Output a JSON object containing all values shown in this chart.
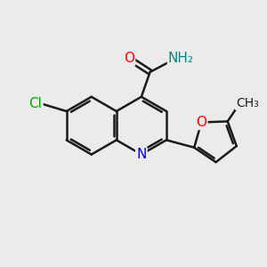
{
  "bg_color": "#ebebeb",
  "bond_color": "#1a1a1a",
  "bond_width": 1.8,
  "atom_colors": {
    "N": "#0000ff",
    "O": "#ff0000",
    "Cl": "#00aa00",
    "NH2": "#008888",
    "C": "#1a1a1a"
  },
  "figsize": [
    3.0,
    3.0
  ],
  "dpi": 100
}
